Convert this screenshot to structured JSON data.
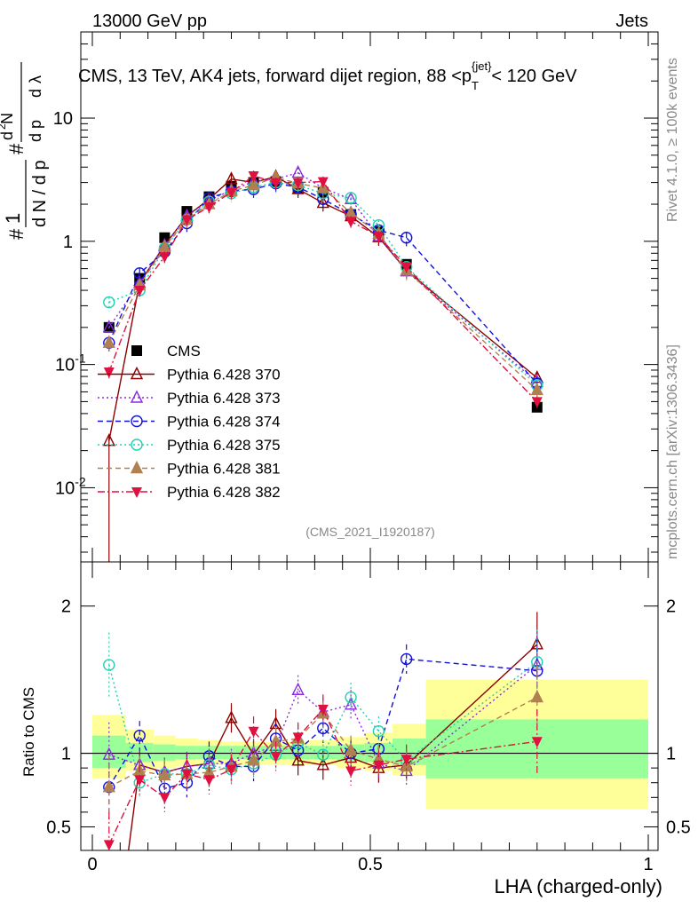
{
  "header": {
    "left": "13000 GeV pp",
    "right": "Jets"
  },
  "main_title": "CMS, 13 TeV, AK4 jets, forward dijet region, 88 <pᵀᵈʲᵉᵗ< 120 GeV",
  "main_title_parts": {
    "text": "CMS, 13 TeV, AK4 jets, forward dijet region, 88 <p",
    "sub": "T",
    "sup": "{jet}",
    "tail": "< 120 GeV"
  },
  "side_labels": {
    "rivet": "Rivet 4.1.0, ≥ 100k events",
    "mcplots": "mcplots.cern.ch [arXiv:1306.3436]"
  },
  "watermark": "(CMS_2021_I1920187)",
  "colors": {
    "CMS": "#000000",
    "p370": "#8b0000",
    "p373": "#8a2be2",
    "p374": "#1010e0",
    "p375": "#20d0b0",
    "p381": "#b08050",
    "p382": "#e01040",
    "band_inner": "#99ff99",
    "band_outer": "#ffff99"
  },
  "chart_data": [
    {
      "type": "line",
      "panel": "main",
      "ylabel": "1/N dN/dp_T  d²N/(dp_T dλ)",
      "yscale": "log",
      "ylim": [
        0.0025,
        50
      ],
      "xlim": [
        -0.02,
        1.0
      ],
      "y_ticklabels": [
        "10^-2",
        "10^-1",
        "1",
        "10"
      ],
      "x": [
        0.03,
        0.085,
        0.13,
        0.17,
        0.21,
        0.25,
        0.29,
        0.33,
        0.37,
        0.415,
        0.465,
        0.515,
        0.565,
        0.8
      ],
      "series": [
        {
          "name": "CMS",
          "key": "CMS",
          "marker": "square",
          "style": "none",
          "values": [
            0.2,
            0.5,
            1.07,
            1.75,
            2.3,
            2.8,
            3.0,
            3.05,
            2.7,
            2.5,
            1.65,
            1.2,
            0.65,
            0.045
          ]
        },
        {
          "name": "Pythia 6.428 370",
          "key": "p370",
          "marker": "triangle-open",
          "style": "solid",
          "values": [
            0.024,
            0.46,
            0.93,
            1.6,
            2.2,
            3.2,
            3.0,
            3.35,
            2.65,
            2.05,
            1.6,
            1.08,
            0.58,
            0.078
          ]
        },
        {
          "name": "Pythia 6.428 373",
          "key": "p373",
          "marker": "triangle-open",
          "style": "dotted",
          "values": [
            0.2,
            0.46,
            0.92,
            1.6,
            2.15,
            2.6,
            3.05,
            3.2,
            3.6,
            2.7,
            2.2,
            1.1,
            0.57,
            0.072
          ]
        },
        {
          "name": "Pythia 6.428 374",
          "key": "p374",
          "marker": "circle-open",
          "style": "dashed",
          "values": [
            0.15,
            0.55,
            0.82,
            1.4,
            2.25,
            2.55,
            2.65,
            2.95,
            2.75,
            2.2,
            1.65,
            1.23,
            1.07,
            0.07
          ]
        },
        {
          "name": "Pythia 6.428 375",
          "key": "p375",
          "marker": "circle-open",
          "style": "dotted",
          "values": [
            0.32,
            0.4,
            0.88,
            1.5,
            2.1,
            2.45,
            2.75,
            3.0,
            2.85,
            2.45,
            2.25,
            1.35,
            0.62,
            0.068
          ]
        },
        {
          "name": "Pythia 6.428 381",
          "key": "p381",
          "marker": "triangle",
          "style": "dashed",
          "values": [
            0.15,
            0.44,
            0.9,
            1.5,
            2.0,
            2.55,
            2.85,
            3.3,
            2.95,
            2.7,
            1.7,
            1.15,
            0.58,
            0.062
          ]
        },
        {
          "name": "Pythia 6.428 382",
          "key": "p382",
          "marker": "triangle-down",
          "style": "dashdot",
          "values": [
            0.087,
            0.4,
            0.75,
            1.5,
            1.9,
            2.5,
            3.4,
            3.0,
            3.0,
            3.05,
            1.45,
            1.1,
            0.62,
            0.05
          ]
        }
      ]
    },
    {
      "type": "line",
      "panel": "ratio",
      "title": "",
      "xlabel": "LHA (charged-only)",
      "ylabel": "Ratio to CMS",
      "ylim": [
        0.34,
        2.3
      ],
      "xlim": [
        -0.02,
        1.0
      ],
      "x_ticklabels": [
        "0",
        "0.5",
        "1"
      ],
      "y_ticklabels": [
        "0.5",
        "1",
        "2"
      ],
      "bins": [
        [
          0.0,
          0.06
        ],
        [
          0.06,
          0.11
        ],
        [
          0.11,
          0.15
        ],
        [
          0.15,
          0.19
        ],
        [
          0.19,
          0.23
        ],
        [
          0.23,
          0.27
        ],
        [
          0.27,
          0.31
        ],
        [
          0.31,
          0.35
        ],
        [
          0.35,
          0.39
        ],
        [
          0.39,
          0.44
        ],
        [
          0.44,
          0.49
        ],
        [
          0.49,
          0.54
        ],
        [
          0.54,
          0.6
        ],
        [
          0.6,
          1.0
        ]
      ],
      "band_inner": [
        [
          0.9,
          1.12
        ],
        [
          0.94,
          1.07
        ],
        [
          0.95,
          1.06
        ],
        [
          0.96,
          1.05
        ],
        [
          0.96,
          1.05
        ],
        [
          0.96,
          1.05
        ],
        [
          0.96,
          1.05
        ],
        [
          0.96,
          1.05
        ],
        [
          0.96,
          1.05
        ],
        [
          0.96,
          1.05
        ],
        [
          0.95,
          1.06
        ],
        [
          0.94,
          1.07
        ],
        [
          0.92,
          1.1
        ],
        [
          0.83,
          1.23
        ]
      ],
      "band_outer": [
        [
          0.83,
          1.26
        ],
        [
          0.88,
          1.16
        ],
        [
          0.9,
          1.12
        ],
        [
          0.91,
          1.1
        ],
        [
          0.92,
          1.09
        ],
        [
          0.92,
          1.08
        ],
        [
          0.92,
          1.08
        ],
        [
          0.92,
          1.08
        ],
        [
          0.92,
          1.08
        ],
        [
          0.92,
          1.09
        ],
        [
          0.9,
          1.11
        ],
        [
          0.88,
          1.14
        ],
        [
          0.85,
          1.2
        ],
        [
          0.62,
          1.5
        ]
      ],
      "x": [
        0.03,
        0.085,
        0.13,
        0.17,
        0.21,
        0.25,
        0.29,
        0.33,
        0.37,
        0.415,
        0.465,
        0.515,
        0.565,
        0.8
      ],
      "series": [
        {
          "name": "Pythia 6.428 370",
          "key": "p370",
          "marker": "triangle-open",
          "style": "solid",
          "values": [
            0.12,
            0.92,
            0.87,
            0.91,
            0.93,
            1.24,
            0.99,
            1.2,
            0.95,
            0.92,
            0.97,
            0.9,
            0.92,
            1.74
          ]
        },
        {
          "name": "Pythia 6.428 373",
          "key": "p373",
          "marker": "triangle-open",
          "style": "dotted",
          "values": [
            0.99,
            0.92,
            0.87,
            0.91,
            0.93,
            0.93,
            1.0,
            1.05,
            1.43,
            1.28,
            1.33,
            0.93,
            0.88,
            1.6
          ]
        },
        {
          "name": "Pythia 6.428 374",
          "key": "p374",
          "marker": "circle-open",
          "style": "dashed",
          "values": [
            0.77,
            1.12,
            0.76,
            0.8,
            0.98,
            0.91,
            0.91,
            1.1,
            1.02,
            1.17,
            1.0,
            1.03,
            1.64,
            1.56
          ]
        },
        {
          "name": "Pythia 6.428 375",
          "key": "p375",
          "marker": "circle-open",
          "style": "dotted",
          "values": [
            1.6,
            0.8,
            0.86,
            0.86,
            0.92,
            0.89,
            0.93,
            0.99,
            1.07,
            0.99,
            1.38,
            1.15,
            0.95,
            1.62
          ]
        },
        {
          "name": "Pythia 6.428 381",
          "key": "p381",
          "marker": "triangle",
          "style": "dashed",
          "values": [
            0.77,
            0.88,
            0.85,
            0.86,
            0.87,
            0.91,
            0.95,
            1.08,
            1.1,
            1.27,
            1.02,
            0.96,
            0.91,
            1.38
          ]
        },
        {
          "name": "Pythia 6.428 382",
          "key": "p382",
          "marker": "triangle-down",
          "style": "dashdot",
          "values": [
            0.38,
            0.82,
            0.7,
            0.86,
            0.82,
            0.89,
            1.15,
            0.98,
            1.11,
            1.3,
            0.88,
            0.92,
            0.96,
            1.08
          ]
        }
      ]
    }
  ]
}
